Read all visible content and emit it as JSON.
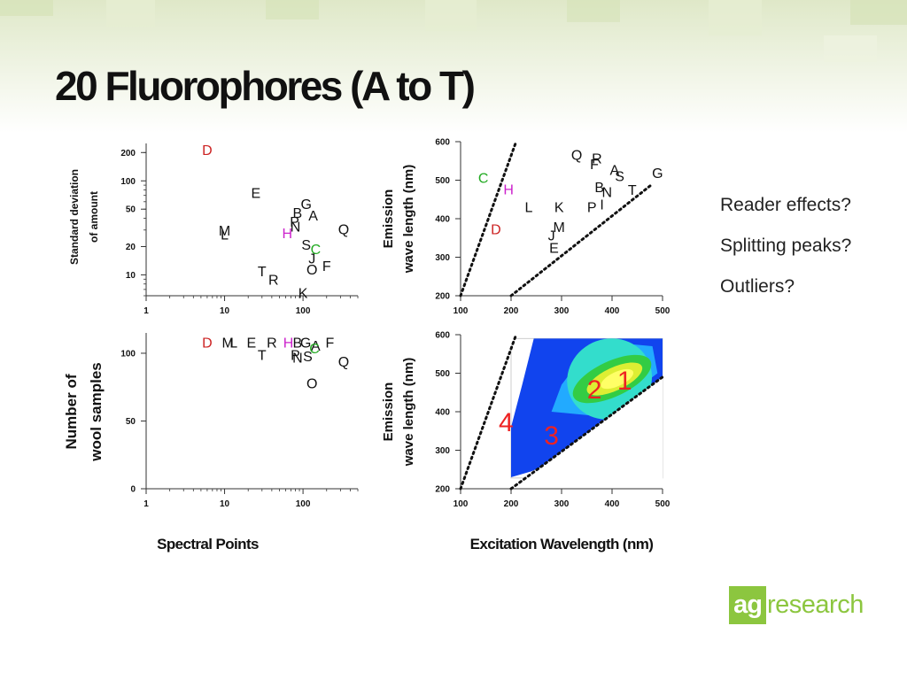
{
  "slide": {
    "title": "20 Fluorophores (A to T)",
    "notes": [
      "Reader effects?",
      "Splitting peaks?",
      "Outliers?"
    ]
  },
  "logo": {
    "box_text": "ag",
    "rest_text": "research",
    "color": "#8cc63f"
  },
  "colors": {
    "red": "#cc2222",
    "magenta": "#cc22cc",
    "green": "#22aa22",
    "black": "#111111"
  },
  "chart_data": [
    {
      "type": "scatter",
      "x_scale": "log",
      "y_scale": "log",
      "xlim": [
        1,
        500
      ],
      "ylim": [
        6,
        250
      ],
      "xticks": [
        1,
        10,
        100
      ],
      "yticks": [
        10,
        20,
        50,
        100,
        200
      ],
      "ylabel": [
        "Standard deviation",
        "of amount"
      ],
      "xlabel": "",
      "points": [
        {
          "label": "D",
          "x": 6,
          "y": 215,
          "color": "#cc2222"
        },
        {
          "label": "E",
          "x": 25,
          "y": 75,
          "color": "#111111"
        },
        {
          "label": "G",
          "x": 110,
          "y": 57,
          "color": "#111111"
        },
        {
          "label": "B",
          "x": 85,
          "y": 46,
          "color": "#111111"
        },
        {
          "label": "A",
          "x": 135,
          "y": 43,
          "color": "#111111"
        },
        {
          "label": "P",
          "x": 78,
          "y": 37,
          "color": "#111111"
        },
        {
          "label": "N",
          "x": 80,
          "y": 33,
          "color": "#111111"
        },
        {
          "label": "M",
          "x": 10,
          "y": 30,
          "color": "#111111"
        },
        {
          "label": "L",
          "x": 10,
          "y": 27,
          "color": "#111111"
        },
        {
          "label": "H",
          "x": 63,
          "y": 28,
          "color": "#cc22cc"
        },
        {
          "label": "Q",
          "x": 330,
          "y": 31,
          "color": "#111111"
        },
        {
          "label": "S",
          "x": 110,
          "y": 21,
          "color": "#111111"
        },
        {
          "label": "C",
          "x": 145,
          "y": 19,
          "color": "#22aa22"
        },
        {
          "label": "J",
          "x": 130,
          "y": 15,
          "color": "#111111"
        },
        {
          "label": "F",
          "x": 200,
          "y": 12.5,
          "color": "#111111"
        },
        {
          "label": "O",
          "x": 130,
          "y": 11.5,
          "color": "#111111"
        },
        {
          "label": "T",
          "x": 30,
          "y": 11,
          "color": "#111111"
        },
        {
          "label": "R",
          "x": 42,
          "y": 9,
          "color": "#111111"
        },
        {
          "label": "K",
          "x": 100,
          "y": 6.5,
          "color": "#111111"
        }
      ]
    },
    {
      "type": "scatter",
      "xlim": [
        100,
        500
      ],
      "ylim": [
        200,
        600
      ],
      "xticks": [
        100,
        200,
        300,
        400,
        500
      ],
      "yticks": [
        200,
        300,
        400,
        500,
        600
      ],
      "ylabel": [
        "Emission",
        "wave length (nm)"
      ],
      "xlabel": "",
      "lines": [
        {
          "x": [
            100,
            210
          ],
          "y": [
            200,
            600
          ]
        },
        {
          "x": [
            200,
            480
          ],
          "y": [
            200,
            490
          ]
        }
      ],
      "points": [
        {
          "label": "C",
          "x": 145,
          "y": 507,
          "color": "#22aa22"
        },
        {
          "label": "H",
          "x": 195,
          "y": 477,
          "color": "#cc22cc"
        },
        {
          "label": "Q",
          "x": 330,
          "y": 567,
          "color": "#111111"
        },
        {
          "label": "R",
          "x": 370,
          "y": 557,
          "color": "#111111"
        },
        {
          "label": "F",
          "x": 365,
          "y": 543,
          "color": "#111111"
        },
        {
          "label": "A",
          "x": 405,
          "y": 528,
          "color": "#111111"
        },
        {
          "label": "S",
          "x": 415,
          "y": 511,
          "color": "#111111"
        },
        {
          "label": "G",
          "x": 490,
          "y": 520,
          "color": "#111111"
        },
        {
          "label": "B",
          "x": 375,
          "y": 483,
          "color": "#111111"
        },
        {
          "label": "N",
          "x": 390,
          "y": 470,
          "color": "#111111"
        },
        {
          "label": "T",
          "x": 440,
          "y": 476,
          "color": "#111111"
        },
        {
          "label": "L",
          "x": 235,
          "y": 431,
          "color": "#111111"
        },
        {
          "label": "K",
          "x": 295,
          "y": 431,
          "color": "#111111"
        },
        {
          "label": "P",
          "x": 360,
          "y": 431,
          "color": "#111111"
        },
        {
          "label": "I",
          "x": 380,
          "y": 438,
          "color": "#111111"
        },
        {
          "label": "D",
          "x": 170,
          "y": 374,
          "color": "#cc2222"
        },
        {
          "label": "M",
          "x": 295,
          "y": 379,
          "color": "#111111"
        },
        {
          "label": "J",
          "x": 280,
          "y": 357,
          "color": "#111111"
        },
        {
          "label": "E",
          "x": 285,
          "y": 325,
          "color": "#111111"
        }
      ]
    },
    {
      "type": "scatter",
      "x_scale": "log",
      "xlim": [
        1,
        500
      ],
      "ylim": [
        0,
        115
      ],
      "xticks": [
        1,
        10,
        100
      ],
      "yticks": [
        0,
        50,
        100
      ],
      "ylabel": [
        "Number of",
        "wool samples"
      ],
      "xlabel": "Spectral Points",
      "points": [
        {
          "label": "D",
          "x": 6,
          "y": 108,
          "color": "#cc2222"
        },
        {
          "label": "M",
          "x": 11,
          "y": 108,
          "color": "#111111"
        },
        {
          "label": "L",
          "x": 13,
          "y": 108,
          "color": "#111111"
        },
        {
          "label": "E",
          "x": 22,
          "y": 108,
          "color": "#111111"
        },
        {
          "label": "R",
          "x": 40,
          "y": 108,
          "color": "#111111"
        },
        {
          "label": "T",
          "x": 30,
          "y": 99,
          "color": "#111111"
        },
        {
          "label": "H",
          "x": 65,
          "y": 108,
          "color": "#cc22cc"
        },
        {
          "label": "B",
          "x": 85,
          "y": 108,
          "color": "#111111"
        },
        {
          "label": "G",
          "x": 108,
          "y": 108,
          "color": "#111111"
        },
        {
          "label": "A",
          "x": 145,
          "y": 106,
          "color": "#111111"
        },
        {
          "label": "C",
          "x": 140,
          "y": 104,
          "color": "#22aa22"
        },
        {
          "label": "F",
          "x": 220,
          "y": 108,
          "color": "#111111"
        },
        {
          "label": "N",
          "x": 85,
          "y": 97,
          "color": "#111111"
        },
        {
          "label": "P",
          "x": 80,
          "y": 99,
          "color": "#111111"
        },
        {
          "label": "S",
          "x": 115,
          "y": 98,
          "color": "#111111"
        },
        {
          "label": "Q",
          "x": 330,
          "y": 94,
          "color": "#111111"
        },
        {
          "label": "O",
          "x": 130,
          "y": 78,
          "color": "#111111"
        }
      ]
    },
    {
      "type": "heatmap",
      "xlim": [
        100,
        500
      ],
      "ylim": [
        200,
        600
      ],
      "xticks": [
        100,
        200,
        300,
        400,
        500
      ],
      "yticks": [
        200,
        300,
        400,
        500,
        600
      ],
      "ylabel": [
        "Emission",
        "wave length (nm)"
      ],
      "xlabel": "Excitation Wavelength (nm)",
      "lines": [
        {
          "x": [
            100,
            210
          ],
          "y": [
            200,
            600
          ]
        },
        {
          "x": [
            200,
            500
          ],
          "y": [
            200,
            490
          ]
        }
      ],
      "region_labels": [
        {
          "text": "1",
          "x": 425,
          "y": 483
        },
        {
          "text": "2",
          "x": 365,
          "y": 460
        },
        {
          "text": "3",
          "x": 280,
          "y": 340
        },
        {
          "text": "4",
          "x": 190,
          "y": 375
        }
      ]
    }
  ]
}
